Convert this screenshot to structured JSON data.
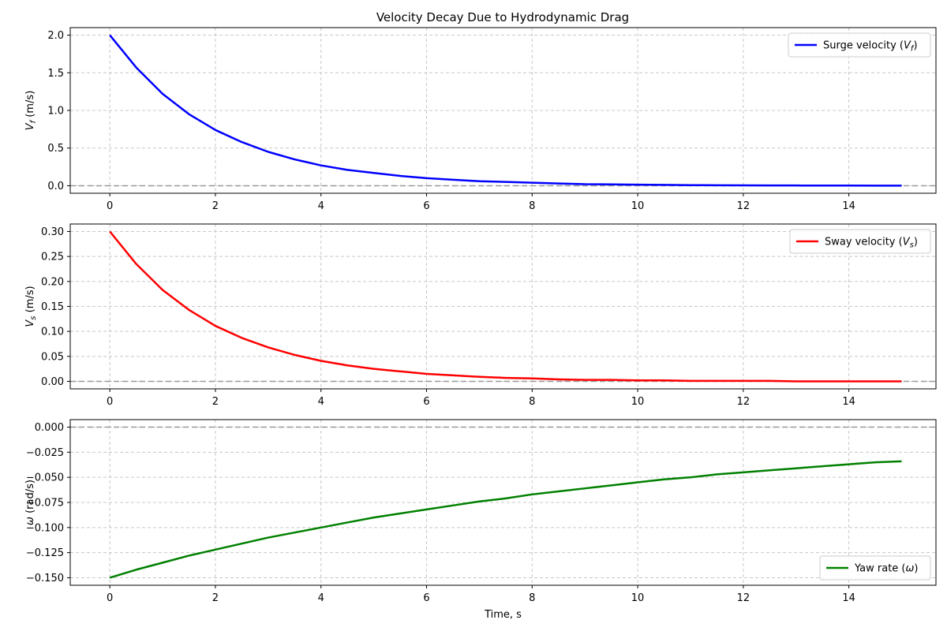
{
  "figure": {
    "title": "Velocity Decay Due to Hydrodynamic Drag"
  },
  "chart_data": [
    {
      "type": "line",
      "title": "Velocity Decay Due to Hydrodynamic Drag",
      "xlabel": "",
      "ylabel": "V_f (m/s)",
      "xlim": [
        -0.75,
        15.65
      ],
      "ylim": [
        -0.1,
        2.1
      ],
      "xticks": [
        0,
        2,
        4,
        6,
        8,
        10,
        12,
        14
      ],
      "xtick_labels": [
        "0",
        "2",
        "4",
        "6",
        "8",
        "10",
        "12",
        "14"
      ],
      "yticks": [
        0.0,
        0.5,
        1.0,
        1.5,
        2.0
      ],
      "ytick_labels": [
        "0.0",
        "0.5",
        "1.0",
        "1.5",
        "2.0"
      ],
      "grid": true,
      "legend_position": "upper right",
      "reference_line": 0,
      "series": [
        {
          "name": "Surge velocity",
          "color": "#0000ff",
          "x": [
            0,
            0.5,
            1,
            1.5,
            2,
            2.5,
            3,
            3.5,
            4,
            4.5,
            5,
            5.5,
            6,
            6.5,
            7,
            7.5,
            8,
            8.5,
            9,
            9.5,
            10,
            10.5,
            11,
            11.5,
            12,
            12.5,
            13,
            13.5,
            14,
            14.5,
            15
          ],
          "y": [
            2.0,
            1.57,
            1.22,
            0.95,
            0.74,
            0.58,
            0.45,
            0.35,
            0.27,
            0.21,
            0.17,
            0.13,
            0.1,
            0.08,
            0.06,
            0.05,
            0.04,
            0.03,
            0.02,
            0.018,
            0.014,
            0.011,
            0.008,
            0.006,
            0.005,
            0.004,
            0.003,
            0.002,
            0.002,
            0.001,
            0.001
          ]
        }
      ]
    },
    {
      "type": "line",
      "xlabel": "",
      "ylabel": "V_s (m/s)",
      "xlim": [
        -0.75,
        15.65
      ],
      "ylim": [
        -0.015,
        0.315
      ],
      "xticks": [
        0,
        2,
        4,
        6,
        8,
        10,
        12,
        14
      ],
      "xtick_labels": [
        "0",
        "2",
        "4",
        "6",
        "8",
        "10",
        "12",
        "14"
      ],
      "yticks": [
        0.0,
        0.05,
        0.1,
        0.15,
        0.2,
        0.25,
        0.3
      ],
      "ytick_labels": [
        "0.00",
        "0.05",
        "0.10",
        "0.15",
        "0.20",
        "0.25",
        "0.30"
      ],
      "grid": true,
      "legend_position": "upper right",
      "reference_line": 0,
      "series": [
        {
          "name": "Sway velocity",
          "color": "#ff0000",
          "x": [
            0,
            0.5,
            1,
            1.5,
            2,
            2.5,
            3,
            3.5,
            4,
            4.5,
            5,
            5.5,
            6,
            6.5,
            7,
            7.5,
            8,
            8.5,
            9,
            9.5,
            10,
            10.5,
            11,
            11.5,
            12,
            12.5,
            13,
            13.5,
            14,
            14.5,
            15
          ],
          "y": [
            0.3,
            0.235,
            0.183,
            0.143,
            0.111,
            0.087,
            0.068,
            0.053,
            0.041,
            0.032,
            0.025,
            0.02,
            0.015,
            0.012,
            0.009,
            0.007,
            0.006,
            0.004,
            0.003,
            0.003,
            0.002,
            0.002,
            0.001,
            0.001,
            0.001,
            0.001,
            0.0,
            0.0,
            0.0,
            0.0,
            0.0
          ]
        }
      ]
    },
    {
      "type": "line",
      "xlabel": "Time, s",
      "ylabel": "ω (rad/s)",
      "xlim": [
        -0.75,
        15.65
      ],
      "ylim": [
        -0.1575,
        0.0075
      ],
      "xticks": [
        0,
        2,
        4,
        6,
        8,
        10,
        12,
        14
      ],
      "xtick_labels": [
        "0",
        "2",
        "4",
        "6",
        "8",
        "10",
        "12",
        "14"
      ],
      "yticks": [
        -0.15,
        -0.125,
        -0.1,
        -0.075,
        -0.05,
        -0.025,
        0.0
      ],
      "ytick_labels": [
        "−0.150",
        "−0.125",
        "−0.100",
        "−0.075",
        "−0.050",
        "−0.025",
        "0.000"
      ],
      "grid": true,
      "legend_position": "lower right",
      "reference_line": 0,
      "series": [
        {
          "name": "Yaw rate",
          "color": "#008000",
          "x": [
            0,
            0.5,
            1,
            1.5,
            2,
            2.5,
            3,
            3.5,
            4,
            4.5,
            5,
            5.5,
            6,
            6.5,
            7,
            7.5,
            8,
            8.5,
            9,
            9.5,
            10,
            10.5,
            11,
            11.5,
            12,
            12.5,
            13,
            13.5,
            14,
            14.5,
            15
          ],
          "y": [
            -0.15,
            -0.142,
            -0.135,
            -0.128,
            -0.122,
            -0.116,
            -0.11,
            -0.105,
            -0.1,
            -0.095,
            -0.09,
            -0.086,
            -0.082,
            -0.078,
            -0.074,
            -0.071,
            -0.067,
            -0.064,
            -0.061,
            -0.058,
            -0.055,
            -0.052,
            -0.05,
            -0.047,
            -0.045,
            -0.043,
            -0.041,
            -0.039,
            -0.037,
            -0.035,
            -0.034
          ]
        }
      ]
    }
  ]
}
